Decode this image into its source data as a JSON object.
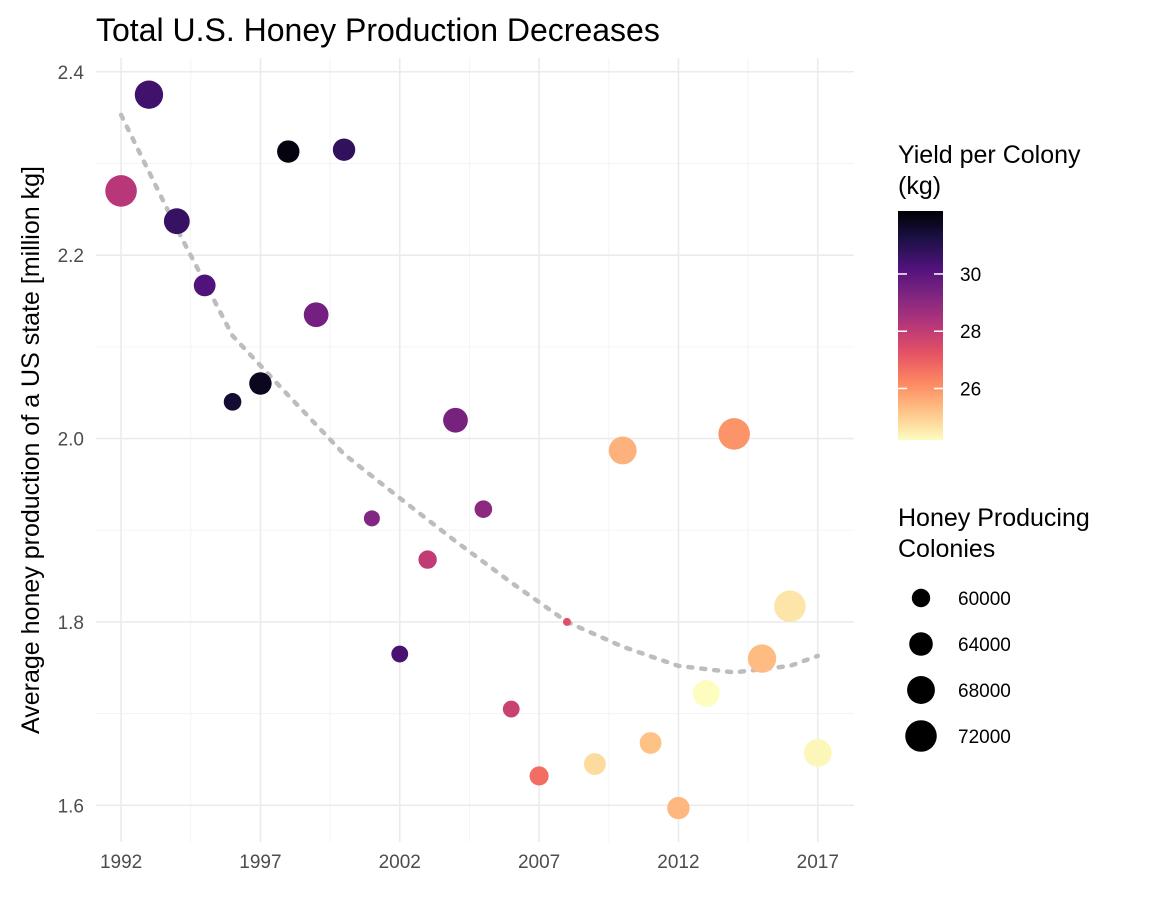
{
  "chart_data": {
    "type": "scatter",
    "title": "Total U.S. Honey Production Decreases",
    "xlabel": "",
    "ylabel": "Average honey production of a US state [million kg]",
    "xlim": [
      1991.1,
      2018.3
    ],
    "ylim": [
      1.56,
      2.415
    ],
    "x_ticks": [
      "1992",
      "1997",
      "2002",
      "2007",
      "2012",
      "2017"
    ],
    "y_ticks": [
      "1.6",
      "1.8",
      "2.0",
      "2.2",
      "2.4"
    ],
    "grid": true,
    "points": [
      {
        "x": 1992,
        "y": 2.27,
        "yield": 28.2,
        "colonies": 72000
      },
      {
        "x": 1993,
        "y": 2.375,
        "yield": 30.5,
        "colonies": 68500
      },
      {
        "x": 1994,
        "y": 2.237,
        "yield": 30.7,
        "colonies": 66000
      },
      {
        "x": 1995,
        "y": 2.167,
        "yield": 30.2,
        "colonies": 62500
      },
      {
        "x": 1996,
        "y": 2.04,
        "yield": 31.5,
        "colonies": 59500
      },
      {
        "x": 1997,
        "y": 2.06,
        "yield": 31.8,
        "colonies": 63000
      },
      {
        "x": 1998,
        "y": 2.313,
        "yield": 32.0,
        "colonies": 63000
      },
      {
        "x": 1999,
        "y": 2.135,
        "yield": 29.5,
        "colonies": 65000
      },
      {
        "x": 2000,
        "y": 2.315,
        "yield": 30.8,
        "colonies": 63000
      },
      {
        "x": 2001,
        "y": 1.913,
        "yield": 29.2,
        "colonies": 58500
      },
      {
        "x": 2002,
        "y": 1.765,
        "yield": 30.4,
        "colonies": 59000
      },
      {
        "x": 2003,
        "y": 1.868,
        "yield": 28.0,
        "colonies": 60000
      },
      {
        "x": 2004,
        "y": 2.02,
        "yield": 29.4,
        "colonies": 65000
      },
      {
        "x": 2005,
        "y": 1.923,
        "yield": 29.0,
        "colonies": 59500
      },
      {
        "x": 2006,
        "y": 1.705,
        "yield": 27.8,
        "colonies": 59000
      },
      {
        "x": 2007,
        "y": 1.632,
        "yield": 26.7,
        "colonies": 60500
      },
      {
        "x": 2008,
        "y": 1.8,
        "yield": 27.3,
        "colonies": 55000
      },
      {
        "x": 2009,
        "y": 1.645,
        "yield": 24.8,
        "colonies": 62500
      },
      {
        "x": 2010,
        "y": 1.987,
        "yield": 25.5,
        "colonies": 68000
      },
      {
        "x": 2011,
        "y": 1.668,
        "yield": 25.2,
        "colonies": 62500
      },
      {
        "x": 2012,
        "y": 1.597,
        "yield": 25.4,
        "colonies": 63000
      },
      {
        "x": 2013,
        "y": 1.722,
        "yield": 24.2,
        "colonies": 67000
      },
      {
        "x": 2014,
        "y": 2.005,
        "yield": 26.0,
        "colonies": 72000
      },
      {
        "x": 2015,
        "y": 1.76,
        "yield": 25.3,
        "colonies": 68500
      },
      {
        "x": 2016,
        "y": 1.817,
        "yield": 24.6,
        "colonies": 72000
      },
      {
        "x": 2017,
        "y": 1.657,
        "yield": 24.3,
        "colonies": 68000
      }
    ],
    "trend": [
      {
        "x": 1992,
        "y": 2.353
      },
      {
        "x": 1994,
        "y": 2.229
      },
      {
        "x": 1996,
        "y": 2.112
      },
      {
        "x": 1998,
        "y": 2.047
      },
      {
        "x": 2000,
        "y": 1.983
      },
      {
        "x": 2002,
        "y": 1.935
      },
      {
        "x": 2004,
        "y": 1.888
      },
      {
        "x": 2006,
        "y": 1.843
      },
      {
        "x": 2008,
        "y": 1.8
      },
      {
        "x": 2010,
        "y": 1.773
      },
      {
        "x": 2012,
        "y": 1.752
      },
      {
        "x": 2014,
        "y": 1.745
      },
      {
        "x": 2016,
        "y": 1.752
      },
      {
        "x": 2017,
        "y": 1.763
      }
    ],
    "trend_color": "#bdbdbd",
    "color_legend": {
      "title_lines": [
        "Yield per Colony",
        "(kg)"
      ],
      "range": [
        24.2,
        32.2
      ],
      "ticks": [
        "26",
        "28",
        "30"
      ]
    },
    "size_legend": {
      "title_lines": [
        "Honey Producing",
        "Colonies"
      ],
      "entries": [
        "60000",
        "64000",
        "68000",
        "72000"
      ],
      "range": [
        55000,
        72500
      ]
    },
    "colormap": [
      "#000004",
      "#1d1147",
      "#51127c",
      "#822681",
      "#b73779",
      "#e75263",
      "#fc8961",
      "#fec287",
      "#fcfdbf"
    ]
  }
}
